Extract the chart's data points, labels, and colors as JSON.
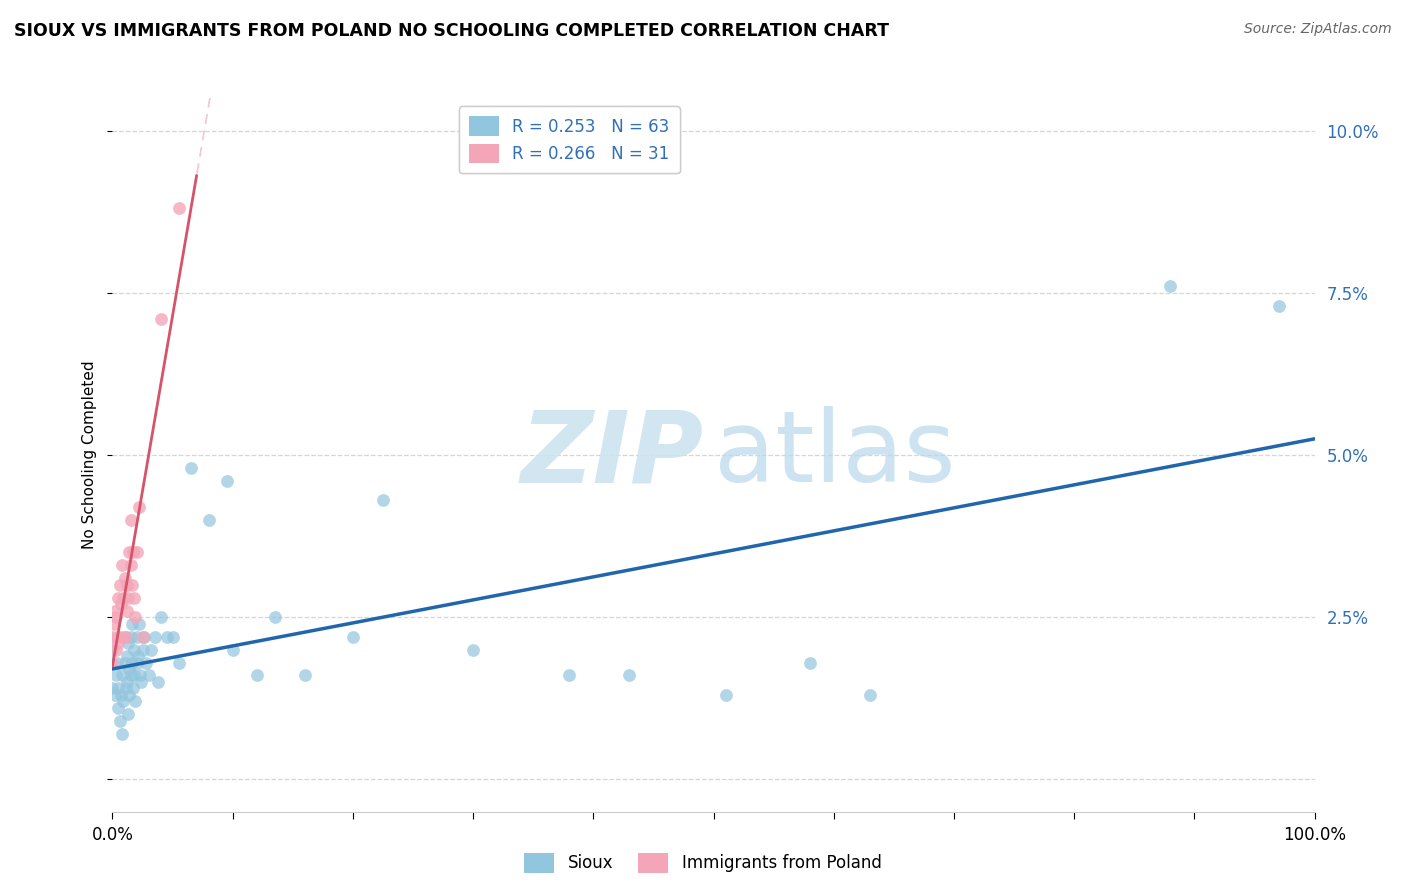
{
  "title": "SIOUX VS IMMIGRANTS FROM POLAND NO SCHOOLING COMPLETED CORRELATION CHART",
  "source": "Source: ZipAtlas.com",
  "ylabel": "No Schooling Completed",
  "legend_label1": "Sioux",
  "legend_label2": "Immigrants from Poland",
  "r1": 0.253,
  "n1": 63,
  "r2": 0.266,
  "n2": 31,
  "color1": "#92c5de",
  "color2": "#f4a6b8",
  "trendline1_color": "#2166ac",
  "trendline2_color": "#d6546a",
  "trendline2_dashed_color": "#e8a0aa",
  "axis_text_color": "#3070b8",
  "xlim": [
    0.0,
    1.0
  ],
  "ylim": [
    -0.005,
    0.105
  ],
  "yticks": [
    0.0,
    0.025,
    0.05,
    0.075,
    0.1
  ],
  "xticks_minor": [
    0.1,
    0.2,
    0.3,
    0.4,
    0.5,
    0.6,
    0.7,
    0.8,
    0.9
  ],
  "sioux_x": [
    0.0,
    0.0,
    0.002,
    0.003,
    0.004,
    0.005,
    0.005,
    0.006,
    0.007,
    0.008,
    0.008,
    0.009,
    0.01,
    0.01,
    0.011,
    0.012,
    0.012,
    0.013,
    0.013,
    0.014,
    0.014,
    0.015,
    0.015,
    0.016,
    0.016,
    0.017,
    0.018,
    0.018,
    0.019,
    0.02,
    0.02,
    0.021,
    0.022,
    0.023,
    0.024,
    0.025,
    0.026,
    0.028,
    0.03,
    0.032,
    0.035,
    0.038,
    0.04,
    0.045,
    0.05,
    0.055,
    0.065,
    0.08,
    0.095,
    0.1,
    0.12,
    0.135,
    0.16,
    0.2,
    0.225,
    0.3,
    0.38,
    0.43,
    0.51,
    0.58,
    0.63,
    0.88,
    0.97
  ],
  "sioux_y": [
    0.02,
    0.014,
    0.013,
    0.016,
    0.018,
    0.014,
    0.011,
    0.009,
    0.013,
    0.007,
    0.016,
    0.012,
    0.018,
    0.022,
    0.014,
    0.019,
    0.015,
    0.01,
    0.021,
    0.013,
    0.017,
    0.016,
    0.022,
    0.018,
    0.024,
    0.014,
    0.02,
    0.016,
    0.012,
    0.022,
    0.018,
    0.019,
    0.024,
    0.016,
    0.015,
    0.02,
    0.022,
    0.018,
    0.016,
    0.02,
    0.022,
    0.015,
    0.025,
    0.022,
    0.022,
    0.018,
    0.048,
    0.04,
    0.046,
    0.02,
    0.016,
    0.025,
    0.016,
    0.022,
    0.043,
    0.02,
    0.016,
    0.016,
    0.013,
    0.018,
    0.013,
    0.076,
    0.073
  ],
  "poland_x": [
    0.0,
    0.0,
    0.001,
    0.002,
    0.003,
    0.003,
    0.004,
    0.005,
    0.005,
    0.006,
    0.007,
    0.007,
    0.008,
    0.009,
    0.01,
    0.011,
    0.012,
    0.012,
    0.013,
    0.014,
    0.015,
    0.015,
    0.016,
    0.017,
    0.018,
    0.019,
    0.02,
    0.022,
    0.025,
    0.04,
    0.055
  ],
  "poland_y": [
    0.022,
    0.018,
    0.024,
    0.026,
    0.025,
    0.02,
    0.022,
    0.028,
    0.021,
    0.03,
    0.027,
    0.022,
    0.033,
    0.028,
    0.031,
    0.022,
    0.03,
    0.026,
    0.028,
    0.035,
    0.04,
    0.033,
    0.03,
    0.035,
    0.028,
    0.025,
    0.035,
    0.042,
    0.022,
    0.071,
    0.088
  ]
}
